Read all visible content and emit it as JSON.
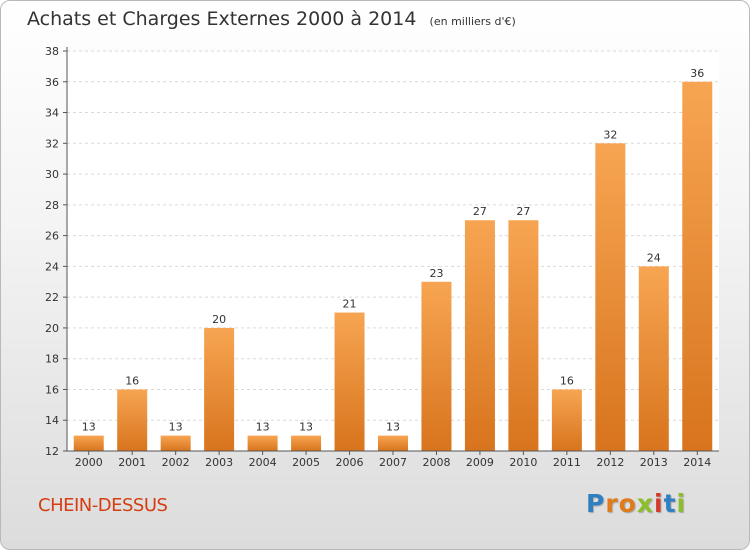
{
  "header": {
    "title": "Achats et Charges Externes 2000 à 2014",
    "unit": "(en milliers d'€)"
  },
  "commune": "CHEIN-DESSUS",
  "logo": {
    "text": "Proxiti",
    "letters": [
      {
        "char": "P",
        "color": "#2f7fc1"
      },
      {
        "char": "r",
        "color": "#e07b1b"
      },
      {
        "char": "o",
        "color": "#e07b1b"
      },
      {
        "char": "x",
        "color": "#8bbf2a"
      },
      {
        "char": "i",
        "color": "#d23a2a"
      },
      {
        "char": "t",
        "color": "#2f7fc1"
      },
      {
        "char": "i",
        "color": "#8bbf2a"
      }
    ]
  },
  "colors": {
    "bar_light": "#f7a552",
    "bar_dark": "#d8741d",
    "axis": "#555555",
    "grid": "#d9d9d9",
    "text": "#333333"
  },
  "chart_data": {
    "type": "bar",
    "categories": [
      "2000",
      "2001",
      "2002",
      "2003",
      "2004",
      "2005",
      "2006",
      "2007",
      "2008",
      "2009",
      "2010",
      "2011",
      "2012",
      "2013",
      "2014"
    ],
    "values": [
      13,
      16,
      13,
      20,
      13,
      13,
      21,
      13,
      23,
      27,
      27,
      16,
      32,
      24,
      36
    ],
    "ylim": [
      12,
      38
    ],
    "yticks": [
      12,
      14,
      16,
      18,
      20,
      22,
      24,
      26,
      28,
      30,
      32,
      34,
      36,
      38
    ],
    "grid": true,
    "data_labels": true
  }
}
